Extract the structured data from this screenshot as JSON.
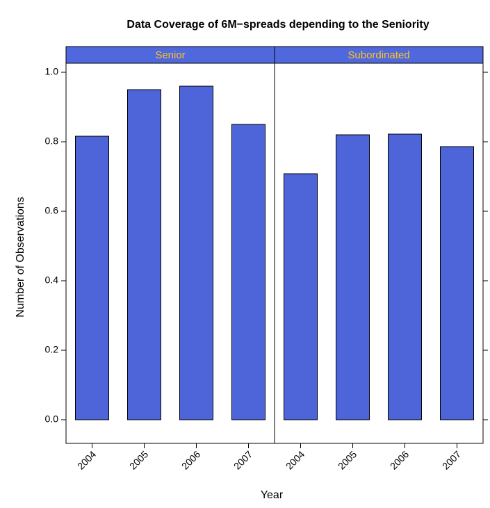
{
  "chart_data": {
    "type": "bar",
    "title": "Data Coverage of 6M−spreads depending to the Seniority",
    "x_label": "Year",
    "y_label": "Number of Observations",
    "color": "#4e65d9",
    "strip_color": "#4f68dd",
    "strip_text_color": "#ffc61a",
    "ylim": [
      -0.068,
      1.026
    ],
    "yticks": [
      {
        "value": 0,
        "label": "0.0"
      },
      0.2,
      0.4,
      0.6,
      0.8,
      {
        "value": 1,
        "label": "1.0"
      }
    ],
    "panels": [
      {
        "title": "Senior",
        "categories": [
          "2004",
          "2005",
          "2006",
          "2007"
        ],
        "values": [
          0.816,
          0.95,
          0.96,
          0.85
        ]
      },
      {
        "title": "Subordinated",
        "categories": [
          "2004",
          "2005",
          "2006",
          "2007"
        ],
        "values": [
          0.708,
          0.82,
          0.822,
          0.786
        ]
      }
    ]
  }
}
